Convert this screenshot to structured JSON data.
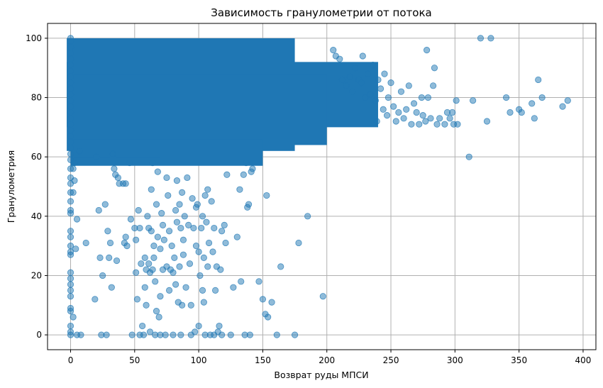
{
  "chart_data": {
    "type": "scatter",
    "title": "Зависимость гранулометрии от потока",
    "xlabel": "Возврат руды МПСИ",
    "ylabel": "Гранулометрия",
    "xlim": [
      -18,
      410
    ],
    "ylim": [
      -5,
      105
    ],
    "xticks": [
      0,
      50,
      100,
      150,
      200,
      250,
      300,
      350,
      400
    ],
    "yticks": [
      0,
      20,
      40,
      60,
      80,
      100
    ],
    "grid": true,
    "series": [
      {
        "color": "#1f77b4",
        "marker_alpha": 0.5,
        "points": [
          [
            0,
            100
          ],
          [
            0,
            99
          ],
          [
            0,
            97
          ],
          [
            0,
            95
          ],
          [
            0,
            93
          ],
          [
            0,
            91
          ],
          [
            0,
            89
          ],
          [
            0,
            87
          ],
          [
            0,
            85
          ],
          [
            0,
            83
          ],
          [
            0,
            81
          ],
          [
            0,
            79
          ],
          [
            0,
            77
          ],
          [
            0,
            75
          ],
          [
            0,
            73
          ],
          [
            0,
            71
          ],
          [
            0,
            69
          ],
          [
            0,
            67
          ],
          [
            0,
            65
          ],
          [
            0,
            63
          ],
          [
            0,
            61
          ],
          [
            0,
            59
          ],
          [
            0,
            56
          ],
          [
            0,
            53
          ],
          [
            0,
            51
          ],
          [
            0,
            48
          ],
          [
            0,
            45
          ],
          [
            0,
            42
          ],
          [
            0,
            41
          ],
          [
            0,
            35
          ],
          [
            0,
            33
          ],
          [
            0,
            30
          ],
          [
            0,
            28
          ],
          [
            0,
            27
          ],
          [
            0,
            21
          ],
          [
            0,
            19
          ],
          [
            0,
            17
          ],
          [
            0,
            15
          ],
          [
            0,
            13
          ],
          [
            0,
            9
          ],
          [
            0,
            8
          ],
          [
            0,
            3
          ],
          [
            0,
            1
          ],
          [
            0,
            0
          ],
          [
            2,
            56
          ],
          [
            2,
            48
          ],
          [
            2,
            6
          ],
          [
            3,
            58
          ],
          [
            3,
            52
          ],
          [
            4,
            29
          ],
          [
            5,
            39
          ],
          [
            5,
            0
          ],
          [
            7,
            62
          ],
          [
            8,
            0
          ],
          [
            12,
            31
          ],
          [
            19,
            12
          ],
          [
            20,
            60
          ],
          [
            22,
            42
          ],
          [
            23,
            26
          ],
          [
            24,
            0
          ],
          [
            25,
            20
          ],
          [
            27,
            44
          ],
          [
            28,
            0
          ],
          [
            29,
            35
          ],
          [
            30,
            26
          ],
          [
            31,
            31
          ],
          [
            32,
            16
          ],
          [
            33,
            61
          ],
          [
            34,
            56
          ],
          [
            35,
            54
          ],
          [
            36,
            25
          ],
          [
            37,
            53
          ],
          [
            38,
            51
          ],
          [
            41,
            51
          ],
          [
            42,
            31
          ],
          [
            43,
            51
          ],
          [
            43,
            33
          ],
          [
            44,
            30
          ],
          [
            46,
            58
          ],
          [
            47,
            39
          ],
          [
            48,
            0
          ],
          [
            50,
            36
          ],
          [
            51,
            32
          ],
          [
            51,
            21
          ],
          [
            52,
            12
          ],
          [
            53,
            42
          ],
          [
            54,
            36
          ],
          [
            54,
            0
          ],
          [
            55,
            24
          ],
          [
            56,
            3
          ],
          [
            57,
            0
          ],
          [
            58,
            26
          ],
          [
            58,
            16
          ],
          [
            59,
            10
          ],
          [
            59,
            22
          ],
          [
            60,
            40
          ],
          [
            61,
            36
          ],
          [
            61,
            24
          ],
          [
            62,
            21
          ],
          [
            62,
            1
          ],
          [
            63,
            35
          ],
          [
            63,
            49
          ],
          [
            64,
            58
          ],
          [
            64,
            22
          ],
          [
            65,
            30
          ],
          [
            65,
            26
          ],
          [
            66,
            0
          ],
          [
            66,
            18
          ],
          [
            67,
            44
          ],
          [
            67,
            8
          ],
          [
            68,
            55
          ],
          [
            68,
            33
          ],
          [
            69,
            6
          ],
          [
            70,
            13
          ],
          [
            70,
            29
          ],
          [
            70,
            0
          ],
          [
            71,
            41
          ],
          [
            72,
            37
          ],
          [
            72,
            22
          ],
          [
            73,
            32
          ],
          [
            74,
            0
          ],
          [
            75,
            23
          ],
          [
            75,
            53
          ],
          [
            76,
            47
          ],
          [
            77,
            35
          ],
          [
            77,
            15
          ],
          [
            78,
            22
          ],
          [
            79,
            30
          ],
          [
            80,
            0
          ],
          [
            80,
            21
          ],
          [
            81,
            26
          ],
          [
            82,
            42
          ],
          [
            82,
            17
          ],
          [
            83,
            38
          ],
          [
            83,
            52
          ],
          [
            84,
            11
          ],
          [
            85,
            44
          ],
          [
            85,
            23
          ],
          [
            86,
            36
          ],
          [
            86,
            0
          ],
          [
            87,
            48
          ],
          [
            87,
            10
          ],
          [
            88,
            27
          ],
          [
            88,
            32
          ],
          [
            89,
            40
          ],
          [
            90,
            16
          ],
          [
            91,
            53
          ],
          [
            92,
            37
          ],
          [
            93,
            24
          ],
          [
            94,
            0
          ],
          [
            94,
            10
          ],
          [
            95,
            46
          ],
          [
            96,
            36
          ],
          [
            97,
            1
          ],
          [
            98,
            30
          ],
          [
            98,
            43
          ],
          [
            99,
            44
          ],
          [
            100,
            3
          ],
          [
            100,
            28
          ],
          [
            101,
            20
          ],
          [
            102,
            36
          ],
          [
            103,
            15
          ],
          [
            103,
            40
          ],
          [
            104,
            11
          ],
          [
            104,
            26
          ],
          [
            105,
            47
          ],
          [
            105,
            0
          ],
          [
            106,
            38
          ],
          [
            107,
            49
          ],
          [
            107,
            23
          ],
          [
            108,
            31
          ],
          [
            109,
            0
          ],
          [
            110,
            45
          ],
          [
            111,
            28
          ],
          [
            112,
            36
          ],
          [
            112,
            0
          ],
          [
            113,
            15
          ],
          [
            114,
            23
          ],
          [
            115,
            1
          ],
          [
            116,
            3
          ],
          [
            117,
            22
          ],
          [
            118,
            35
          ],
          [
            118,
            0
          ],
          [
            120,
            37
          ],
          [
            121,
            31
          ],
          [
            122,
            54
          ],
          [
            125,
            0
          ],
          [
            127,
            16
          ],
          [
            130,
            33
          ],
          [
            132,
            49
          ],
          [
            133,
            18
          ],
          [
            135,
            54
          ],
          [
            136,
            0
          ],
          [
            137,
            58
          ],
          [
            138,
            43
          ],
          [
            139,
            44
          ],
          [
            140,
            0
          ],
          [
            141,
            55
          ],
          [
            142,
            56
          ],
          [
            147,
            18
          ],
          [
            150,
            12
          ],
          [
            152,
            7
          ],
          [
            153,
            47
          ],
          [
            154,
            6
          ],
          [
            157,
            11
          ],
          [
            161,
            0
          ],
          [
            164,
            23
          ],
          [
            175,
            0
          ],
          [
            178,
            31
          ],
          [
            185,
            40
          ],
          [
            197,
            13
          ],
          [
            205,
            96
          ],
          [
            207,
            94
          ],
          [
            210,
            93
          ],
          [
            212,
            86
          ],
          [
            215,
            84
          ],
          [
            218,
            87
          ],
          [
            220,
            82
          ],
          [
            222,
            90
          ],
          [
            225,
            86
          ],
          [
            227,
            85
          ],
          [
            228,
            94
          ],
          [
            230,
            80
          ],
          [
            232,
            88
          ],
          [
            234,
            81
          ],
          [
            236,
            91
          ],
          [
            238,
            79
          ],
          [
            239,
            72
          ],
          [
            240,
            86
          ],
          [
            242,
            83
          ],
          [
            244,
            76
          ],
          [
            245,
            88
          ],
          [
            247,
            74
          ],
          [
            248,
            80
          ],
          [
            250,
            85
          ],
          [
            252,
            77
          ],
          [
            254,
            72
          ],
          [
            256,
            75
          ],
          [
            258,
            82
          ],
          [
            260,
            73
          ],
          [
            262,
            76
          ],
          [
            264,
            84
          ],
          [
            266,
            71
          ],
          [
            268,
            78
          ],
          [
            270,
            75
          ],
          [
            272,
            71
          ],
          [
            274,
            80
          ],
          [
            275,
            74
          ],
          [
            277,
            72
          ],
          [
            278,
            96
          ],
          [
            279,
            80
          ],
          [
            281,
            73
          ],
          [
            283,
            84
          ],
          [
            284,
            90
          ],
          [
            286,
            71
          ],
          [
            288,
            73
          ],
          [
            292,
            71
          ],
          [
            294,
            75
          ],
          [
            296,
            73
          ],
          [
            298,
            75
          ],
          [
            299,
            71
          ],
          [
            301,
            79
          ],
          [
            302,
            71
          ],
          [
            311,
            60
          ],
          [
            314,
            79
          ],
          [
            320,
            100
          ],
          [
            325,
            72
          ],
          [
            328,
            100
          ],
          [
            340,
            80
          ],
          [
            343,
            75
          ],
          [
            350,
            76
          ],
          [
            352,
            75
          ],
          [
            360,
            78
          ],
          [
            362,
            73
          ],
          [
            365,
            86
          ],
          [
            368,
            80
          ],
          [
            384,
            77
          ],
          [
            388,
            79
          ]
        ],
        "dense_regions": [
          {
            "x": [
              -3,
              175
            ],
            "y": [
              62,
              100
            ]
          },
          {
            "x": [
              -3,
              240
            ],
            "y": [
              70,
              92
            ]
          },
          {
            "x": [
              0,
              200
            ],
            "y": [
              64,
              88
            ]
          },
          {
            "x": [
              0,
              150
            ],
            "y": [
              57,
              66
            ]
          },
          {
            "x": [
              0,
              70
            ],
            "y": [
              60,
              66
            ]
          }
        ]
      }
    ]
  }
}
